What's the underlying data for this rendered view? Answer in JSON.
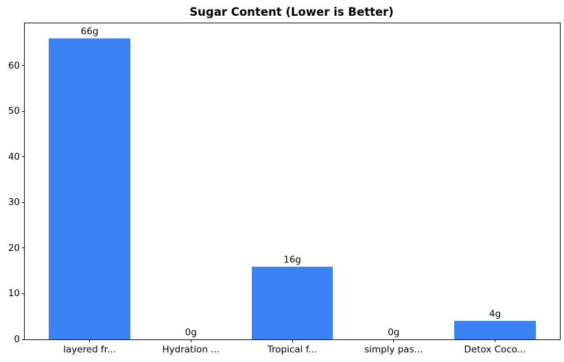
{
  "chart_data": {
    "type": "bar",
    "title": "Sugar Content (Lower is Better)",
    "categories": [
      "layered fr...",
      "Hydration ...",
      "Tropical f...",
      "simply pas...",
      "Detox Coco..."
    ],
    "values": [
      66,
      0,
      16,
      0,
      4
    ],
    "value_labels": [
      "66g",
      "0g",
      "16g",
      "0g",
      "4g"
    ],
    "xlabel": "",
    "ylabel": "",
    "y_ticks": [
      0,
      10,
      20,
      30,
      40,
      50,
      60
    ],
    "ylim": [
      0,
      69.3
    ],
    "xlim": [
      -0.64,
      4.64
    ],
    "bar_width_units": 0.8,
    "bar_color": "#3b82f6",
    "axis_color": "#000000",
    "background_color": "#ffffff",
    "grid": false,
    "legend": false
  }
}
